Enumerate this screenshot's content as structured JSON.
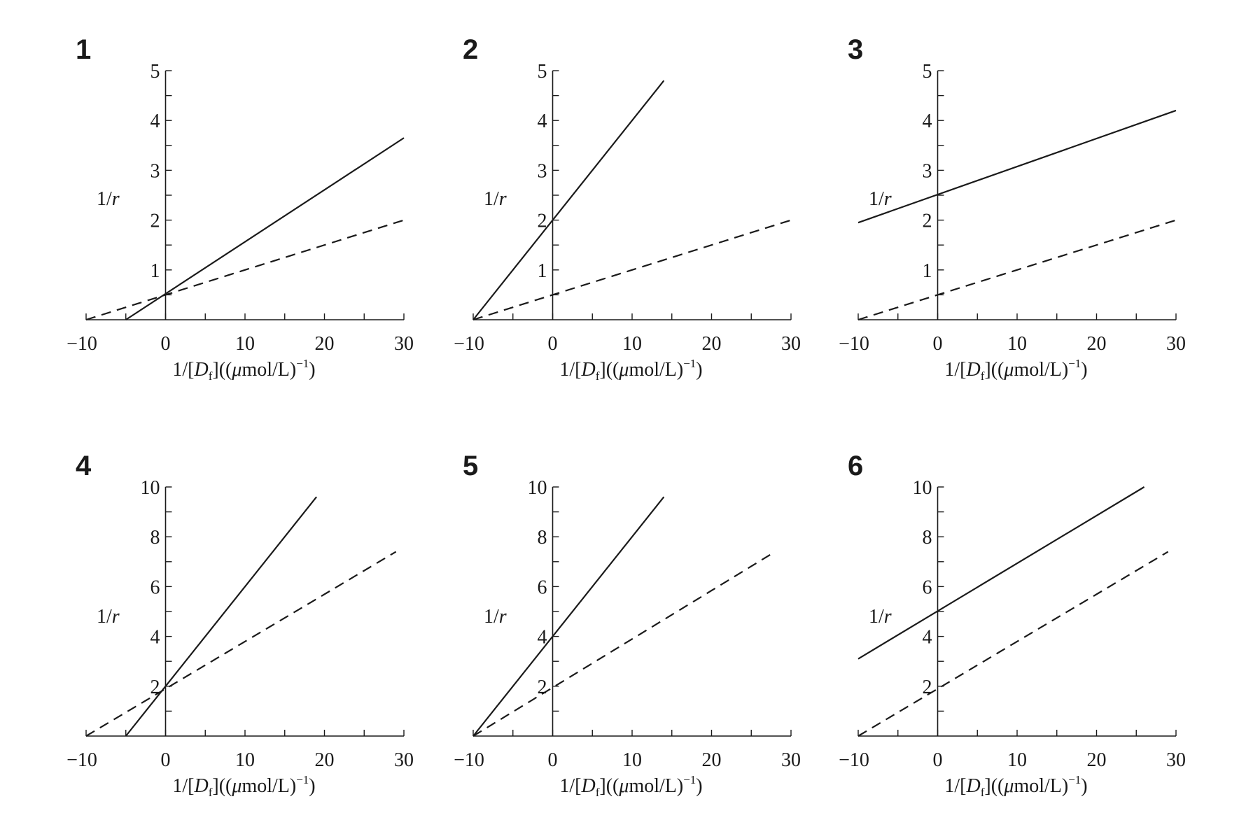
{
  "chart_data": [
    {
      "type": "line",
      "title": "1",
      "xlabel": {
        "pre": "1/[",
        "var": "D",
        "sub": "f",
        "mid": "]((",
        "mu": "μ",
        "unit": "mol/L)",
        "sup": "−1",
        "post": ")"
      },
      "ylabel": {
        "pre": "1/",
        "var": "r"
      },
      "xlim": [
        -10,
        30
      ],
      "ylim": [
        0,
        5
      ],
      "xticks": [
        -10,
        0,
        10,
        20,
        30
      ],
      "xtick_labels": [
        "−10",
        "0",
        "10",
        "20",
        "30"
      ],
      "yticks": [
        1,
        2,
        3,
        4,
        5
      ],
      "ytick_labels": [
        "1",
        "2",
        "3",
        "4",
        "5"
      ],
      "yminor": 0.5,
      "series": [
        {
          "name": "solid",
          "style": "solid",
          "x": [
            -5,
            30
          ],
          "y": [
            0,
            3.65
          ]
        },
        {
          "name": "dashed",
          "style": "dashed",
          "x": [
            -10,
            30
          ],
          "y": [
            0,
            2
          ]
        }
      ]
    },
    {
      "type": "line",
      "title": "2",
      "xlabel": {
        "pre": "1/[",
        "var": "D",
        "sub": "f",
        "mid": "]((",
        "mu": "μ",
        "unit": "mol/L)",
        "sup": "−1",
        "post": ")"
      },
      "ylabel": {
        "pre": "1/",
        "var": "r"
      },
      "xlim": [
        -10,
        30
      ],
      "ylim": [
        0,
        5
      ],
      "xticks": [
        -10,
        0,
        10,
        20,
        30
      ],
      "xtick_labels": [
        "−10",
        "0",
        "10",
        "20",
        "30"
      ],
      "yticks": [
        1,
        2,
        3,
        4,
        5
      ],
      "ytick_labels": [
        "1",
        "2",
        "3",
        "4",
        "5"
      ],
      "yminor": 0.5,
      "series": [
        {
          "name": "solid",
          "style": "solid",
          "x": [
            -10,
            14
          ],
          "y": [
            0,
            4.8
          ]
        },
        {
          "name": "dashed",
          "style": "dashed",
          "x": [
            -10,
            30
          ],
          "y": [
            0,
            2
          ]
        }
      ]
    },
    {
      "type": "line",
      "title": "3",
      "xlabel": {
        "pre": "1/[",
        "var": "D",
        "sub": "f",
        "mid": "]((",
        "mu": "μ",
        "unit": "mol/L)",
        "sup": "−1",
        "post": ")"
      },
      "ylabel": {
        "pre": "1/",
        "var": "r"
      },
      "xlim": [
        -10,
        30
      ],
      "ylim": [
        0,
        5
      ],
      "xticks": [
        -10,
        0,
        10,
        20,
        30
      ],
      "xtick_labels": [
        "−10",
        "0",
        "10",
        "20",
        "30"
      ],
      "yticks": [
        1,
        2,
        3,
        4,
        5
      ],
      "ytick_labels": [
        "1",
        "2",
        "3",
        "4",
        "5"
      ],
      "yminor": 0.5,
      "series": [
        {
          "name": "solid",
          "style": "solid",
          "x": [
            -10,
            30
          ],
          "y": [
            1.95,
            4.2
          ]
        },
        {
          "name": "dashed",
          "style": "dashed",
          "x": [
            -10,
            30
          ],
          "y": [
            0,
            2
          ]
        }
      ]
    },
    {
      "type": "line",
      "title": "4",
      "xlabel": {
        "pre": "1/[",
        "var": "D",
        "sub": "f",
        "mid": "]((",
        "mu": "μ",
        "unit": "mol/L)",
        "sup": "−1",
        "post": ")"
      },
      "ylabel": {
        "pre": "1/",
        "var": "r"
      },
      "xlim": [
        -10,
        30
      ],
      "ylim": [
        0,
        10
      ],
      "xticks": [
        -10,
        0,
        10,
        20,
        30
      ],
      "xtick_labels": [
        "−10",
        "0",
        "10",
        "20",
        "30"
      ],
      "yticks": [
        2,
        4,
        6,
        8,
        10
      ],
      "ytick_labels": [
        "2",
        "4",
        "6",
        "8",
        "10"
      ],
      "yminor": 1,
      "series": [
        {
          "name": "solid",
          "style": "solid",
          "x": [
            -5,
            19
          ],
          "y": [
            0,
            9.6
          ]
        },
        {
          "name": "dashed",
          "style": "dashed",
          "x": [
            -10,
            29
          ],
          "y": [
            0,
            7.4
          ]
        }
      ]
    },
    {
      "type": "line",
      "title": "5",
      "xlabel": {
        "pre": "1/[",
        "var": "D",
        "sub": "f",
        "mid": "]((",
        "mu": "μ",
        "unit": "mol/L)",
        "sup": "−1",
        "post": ")"
      },
      "ylabel": {
        "pre": "1/",
        "var": "r"
      },
      "xlim": [
        -10,
        30
      ],
      "ylim": [
        0,
        10
      ],
      "xticks": [
        -10,
        0,
        10,
        20,
        30
      ],
      "xtick_labels": [
        "−10",
        "0",
        "10",
        "20",
        "30"
      ],
      "yticks": [
        2,
        4,
        6,
        8,
        10
      ],
      "ytick_labels": [
        "2",
        "4",
        "6",
        "8",
        "10"
      ],
      "yminor": 1,
      "series": [
        {
          "name": "solid",
          "style": "solid",
          "x": [
            -10,
            14
          ],
          "y": [
            0,
            9.6
          ]
        },
        {
          "name": "dashed",
          "style": "dashed",
          "x": [
            -10,
            28
          ],
          "y": [
            0,
            7.4
          ]
        }
      ]
    },
    {
      "type": "line",
      "title": "6",
      "xlabel": {
        "pre": "1/[",
        "var": "D",
        "sub": "f",
        "mid": "]((",
        "mu": "μ",
        "unit": "mol/L)",
        "sup": "−1",
        "post": ")"
      },
      "ylabel": {
        "pre": "1/",
        "var": "r"
      },
      "xlim": [
        -10,
        30
      ],
      "ylim": [
        0,
        10
      ],
      "xticks": [
        -10,
        0,
        10,
        20,
        30
      ],
      "xtick_labels": [
        "−10",
        "0",
        "10",
        "20",
        "30"
      ],
      "yticks": [
        2,
        4,
        6,
        8,
        10
      ],
      "ytick_labels": [
        "2",
        "4",
        "6",
        "8",
        "10"
      ],
      "yminor": 1,
      "series": [
        {
          "name": "solid",
          "style": "solid",
          "x": [
            -10,
            26
          ],
          "y": [
            3.1,
            10
          ]
        },
        {
          "name": "dashed",
          "style": "dashed",
          "x": [
            -10,
            29
          ],
          "y": [
            0,
            7.4
          ]
        }
      ]
    }
  ],
  "colors": {
    "ink": "#1a1a1a"
  }
}
